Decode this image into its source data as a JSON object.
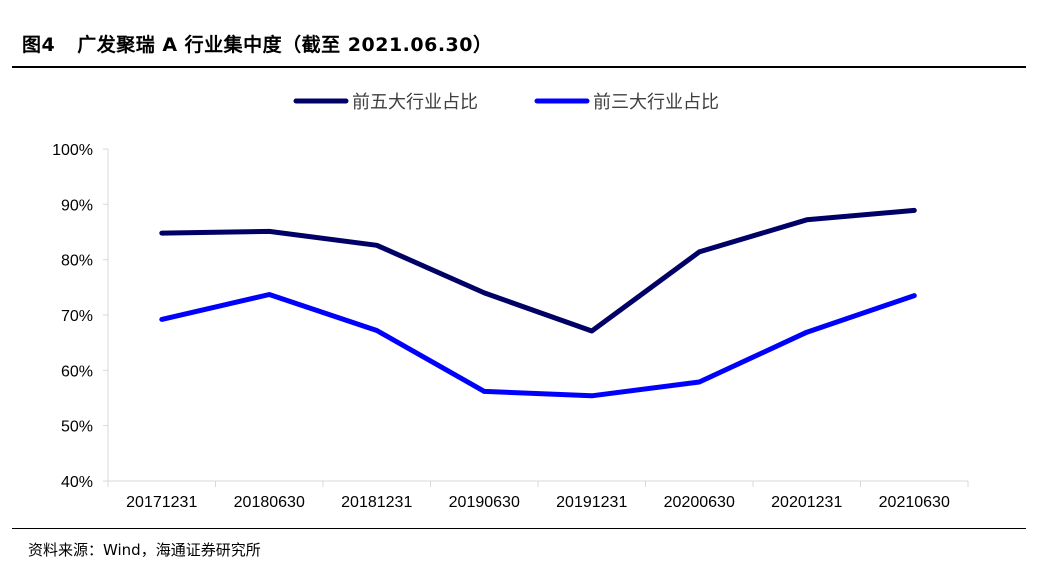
{
  "figure": {
    "number": "图4",
    "title": "广发聚瑞 A 行业集中度（截至 2021.06.30）",
    "source": "资料来源：Wind，海通证券研究所"
  },
  "colors": {
    "series_top5": "#000066",
    "series_top3": "#0000ff",
    "axis": "#d9d9d9"
  },
  "chart_data": {
    "type": "line",
    "title": "",
    "xlabel": "",
    "ylabel": "",
    "ylim": [
      0.4,
      1.0
    ],
    "yticks": [
      "40%",
      "50%",
      "60%",
      "70%",
      "80%",
      "90%",
      "100%"
    ],
    "categories": [
      "20171231",
      "20180630",
      "20181231",
      "20190630",
      "20191231",
      "20200630",
      "20201231",
      "20210630"
    ],
    "legend_position": "top-center",
    "grid": false,
    "series": [
      {
        "name": "前五大行业占比",
        "values": [
          0.848,
          0.851,
          0.826,
          0.74,
          0.671,
          0.814,
          0.872,
          0.889
        ]
      },
      {
        "name": "前三大行业占比",
        "values": [
          0.692,
          0.737,
          0.672,
          0.562,
          0.554,
          0.579,
          0.669,
          0.735
        ]
      }
    ]
  }
}
